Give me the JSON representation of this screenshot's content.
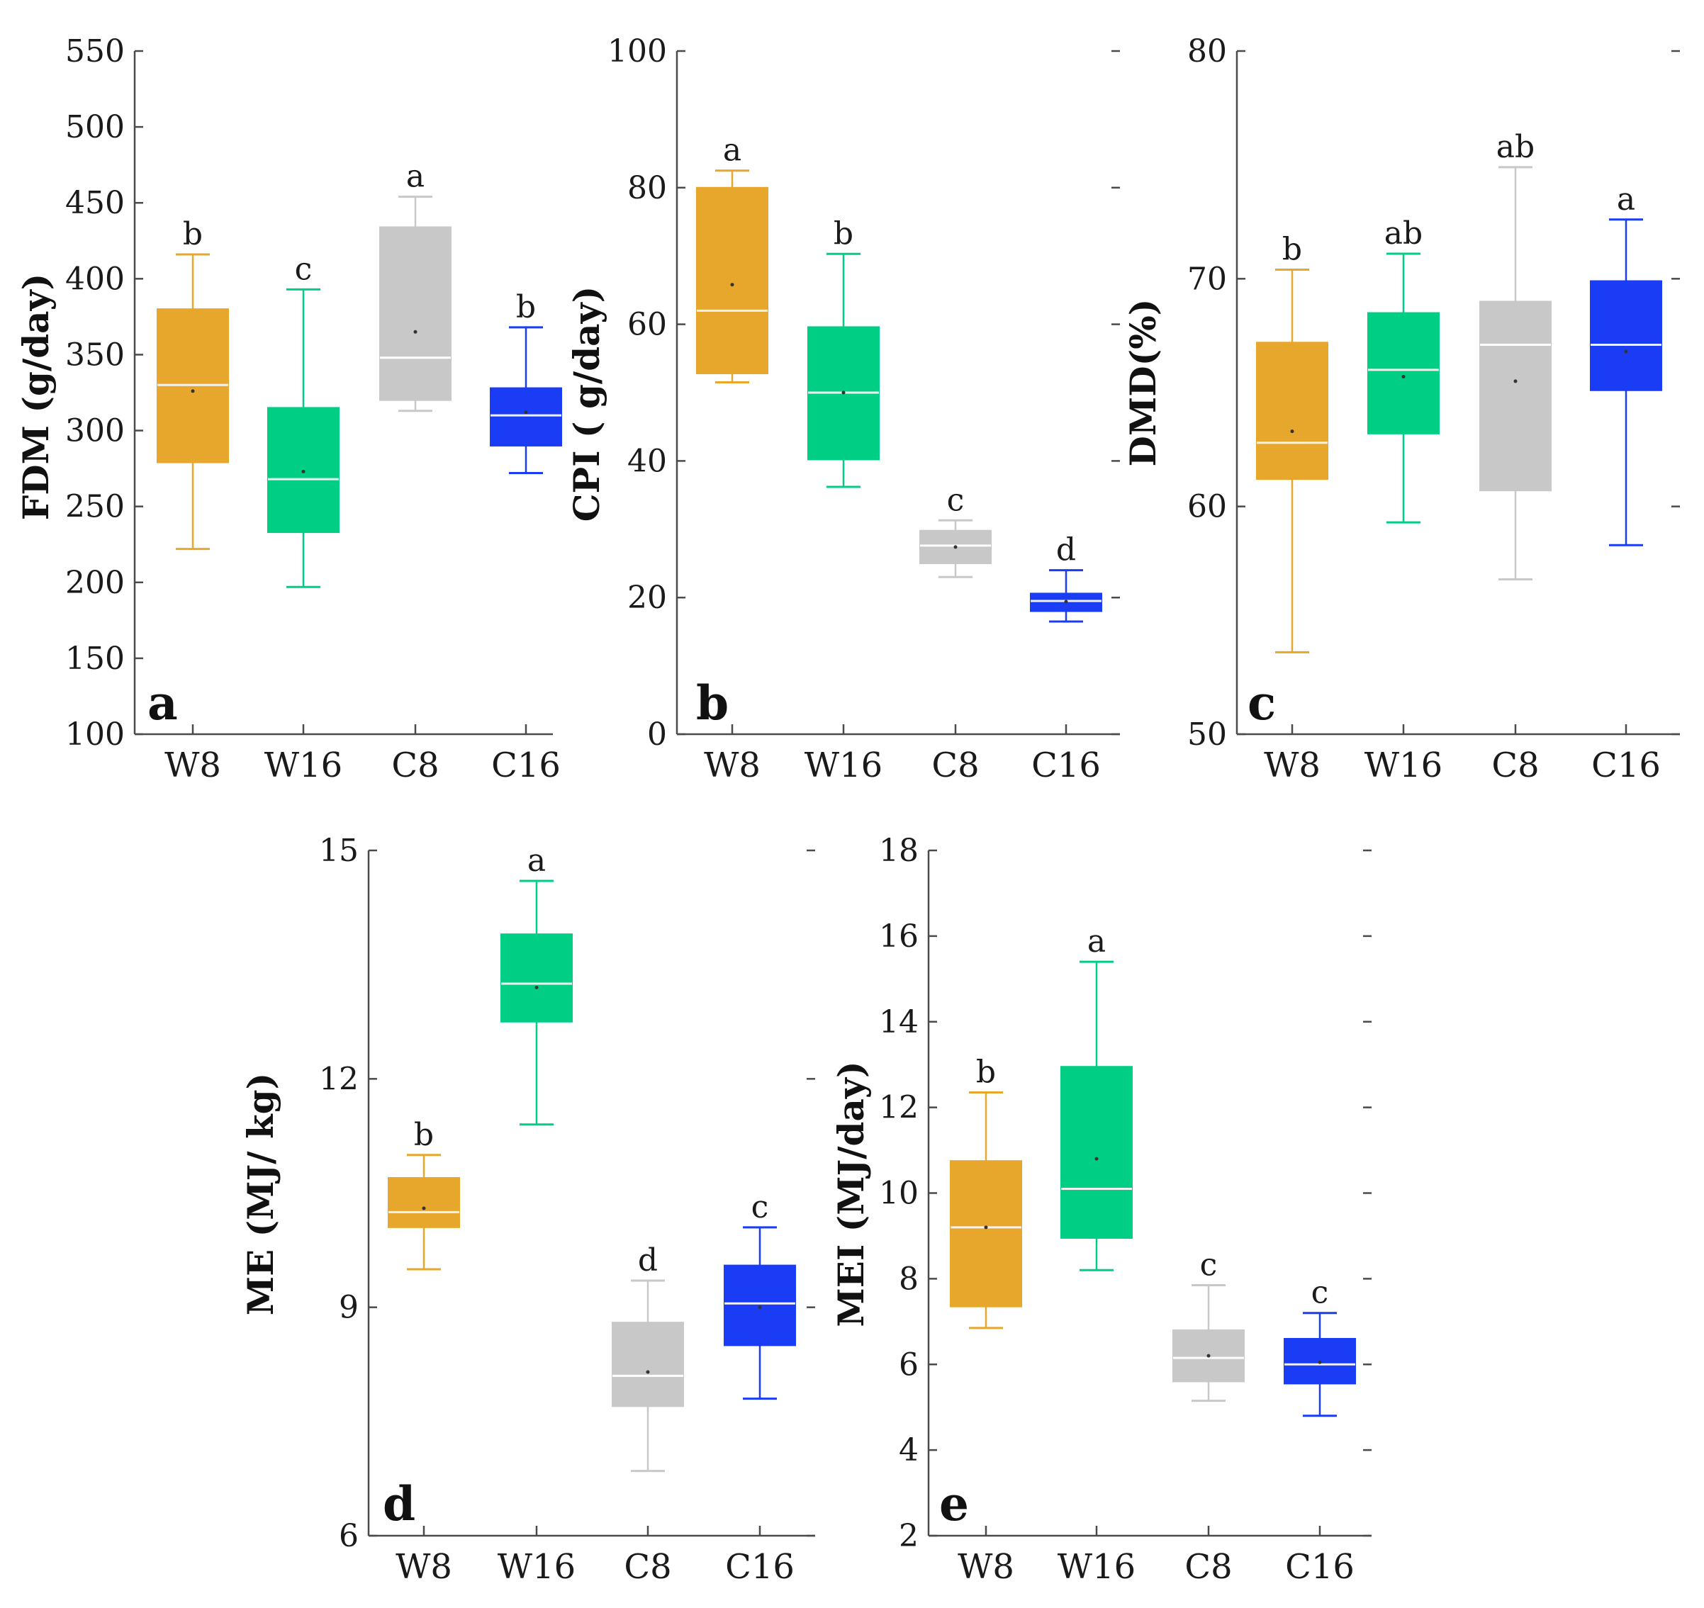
{
  "chart_data": [
    {
      "type": "box",
      "panel_label": "a",
      "ylabel": "FDM (g/day)",
      "ylim": [
        100,
        550
      ],
      "yticks": [
        100,
        150,
        200,
        250,
        300,
        350,
        400,
        450,
        500,
        550
      ],
      "categories": [
        "W8",
        "W16",
        "C8",
        "C16"
      ],
      "series": [
        {
          "category": "W8",
          "min": 222,
          "q1": 279,
          "median": 330,
          "mean": 326,
          "q3": 380,
          "max": 416,
          "significance": "b",
          "color": "#E6A72C"
        },
        {
          "category": "W16",
          "min": 197,
          "q1": 233,
          "median": 268,
          "mean": 273,
          "q3": 315,
          "max": 393,
          "significance": "c",
          "color": "#00CE85"
        },
        {
          "category": "C8",
          "min": 313,
          "q1": 320,
          "median": 348,
          "mean": 365,
          "q3": 434,
          "max": 454,
          "significance": "a",
          "color": "#C8C8C8"
        },
        {
          "category": "C16",
          "min": 272,
          "q1": 290,
          "median": 310,
          "mean": 312,
          "q3": 328,
          "max": 368,
          "significance": "b",
          "color": "#1A3CF5"
        }
      ]
    },
    {
      "type": "box",
      "panel_label": "b",
      "ylabel": "CPI ( g/day)",
      "ylim": [
        0,
        100
      ],
      "yticks": [
        0,
        20,
        40,
        60,
        80,
        100
      ],
      "categories": [
        "W8",
        "W16",
        "C8",
        "C16"
      ],
      "series": [
        {
          "category": "W8",
          "min": 51.5,
          "q1": 52.8,
          "median": 62,
          "mean": 65.8,
          "q3": 80,
          "max": 82.5,
          "significance": "a",
          "color": "#E6A72C"
        },
        {
          "category": "W16",
          "min": 36.2,
          "q1": 40.2,
          "median": 50,
          "mean": 50,
          "q3": 59.6,
          "max": 70.3,
          "significance": "b",
          "color": "#00CE85"
        },
        {
          "category": "C8",
          "min": 23,
          "q1": 25,
          "median": 27.6,
          "mean": 27.4,
          "q3": 29.8,
          "max": 31.3,
          "significance": "c",
          "color": "#C8C8C8"
        },
        {
          "category": "C16",
          "min": 16.5,
          "q1": 18,
          "median": 19.5,
          "mean": 19.4,
          "q3": 20.6,
          "max": 24,
          "significance": "d",
          "color": "#1A3CF5"
        }
      ]
    },
    {
      "type": "box",
      "panel_label": "c",
      "ylabel": "DMD(%)",
      "ylim": [
        50,
        80
      ],
      "yticks": [
        50,
        60,
        70,
        80
      ],
      "categories": [
        "W8",
        "W16",
        "C8",
        "C16"
      ],
      "series": [
        {
          "category": "W8",
          "min": 53.6,
          "q1": 61.2,
          "median": 62.8,
          "mean": 63.3,
          "q3": 67.2,
          "max": 70.4,
          "significance": "b",
          "color": "#E6A72C"
        },
        {
          "category": "W16",
          "min": 59.3,
          "q1": 63.2,
          "median": 66,
          "mean": 65.7,
          "q3": 68.5,
          "max": 71.1,
          "significance": "ab",
          "color": "#00CE85"
        },
        {
          "category": "C8",
          "min": 56.8,
          "q1": 60.7,
          "median": 67.1,
          "mean": 65.5,
          "q3": 69,
          "max": 74.9,
          "significance": "ab",
          "color": "#C8C8C8"
        },
        {
          "category": "C16",
          "min": 58.3,
          "q1": 65.1,
          "median": 67.1,
          "mean": 66.8,
          "q3": 69.9,
          "max": 72.6,
          "significance": "a",
          "color": "#1A3CF5"
        }
      ]
    },
    {
      "type": "box",
      "panel_label": "d",
      "ylabel": "ME (MJ/ kg)",
      "ylim": [
        6,
        15
      ],
      "yticks": [
        6,
        9,
        12,
        15
      ],
      "categories": [
        "W8",
        "W16",
        "C8",
        "C16"
      ],
      "series": [
        {
          "category": "W8",
          "min": 9.5,
          "q1": 10.05,
          "median": 10.25,
          "mean": 10.3,
          "q3": 10.7,
          "max": 11,
          "significance": "b",
          "color": "#E6A72C"
        },
        {
          "category": "W16",
          "min": 11.4,
          "q1": 12.75,
          "median": 13.25,
          "mean": 13.2,
          "q3": 13.9,
          "max": 14.6,
          "significance": "a",
          "color": "#00CE85"
        },
        {
          "category": "C8",
          "min": 6.85,
          "q1": 7.7,
          "median": 8.1,
          "mean": 8.15,
          "q3": 8.8,
          "max": 9.35,
          "significance": "d",
          "color": "#C8C8C8"
        },
        {
          "category": "C16",
          "min": 7.8,
          "q1": 8.5,
          "median": 9.05,
          "mean": 9,
          "q3": 9.55,
          "max": 10.05,
          "significance": "c",
          "color": "#1A3CF5"
        }
      ]
    },
    {
      "type": "box",
      "panel_label": "e",
      "ylabel": "MEI (MJ/day)",
      "ylim": [
        2,
        18
      ],
      "yticks": [
        2,
        4,
        6,
        8,
        10,
        12,
        14,
        16,
        18
      ],
      "categories": [
        "W8",
        "W16",
        "C8",
        "C16"
      ],
      "series": [
        {
          "category": "W8",
          "min": 6.85,
          "q1": 7.35,
          "median": 9.2,
          "mean": 9.2,
          "q3": 10.75,
          "max": 12.35,
          "significance": "b",
          "color": "#E6A72C"
        },
        {
          "category": "W16",
          "min": 8.2,
          "q1": 8.95,
          "median": 10.1,
          "mean": 10.8,
          "q3": 12.95,
          "max": 15.4,
          "significance": "a",
          "color": "#00CE85"
        },
        {
          "category": "C8",
          "min": 5.15,
          "q1": 5.6,
          "median": 6.15,
          "mean": 6.2,
          "q3": 6.8,
          "max": 7.85,
          "significance": "c",
          "color": "#C8C8C8"
        },
        {
          "category": "C16",
          "min": 4.8,
          "q1": 5.55,
          "median": 6.0,
          "mean": 6.05,
          "q3": 6.6,
          "max": 7.2,
          "significance": "c",
          "color": "#1A3CF5"
        }
      ]
    }
  ]
}
